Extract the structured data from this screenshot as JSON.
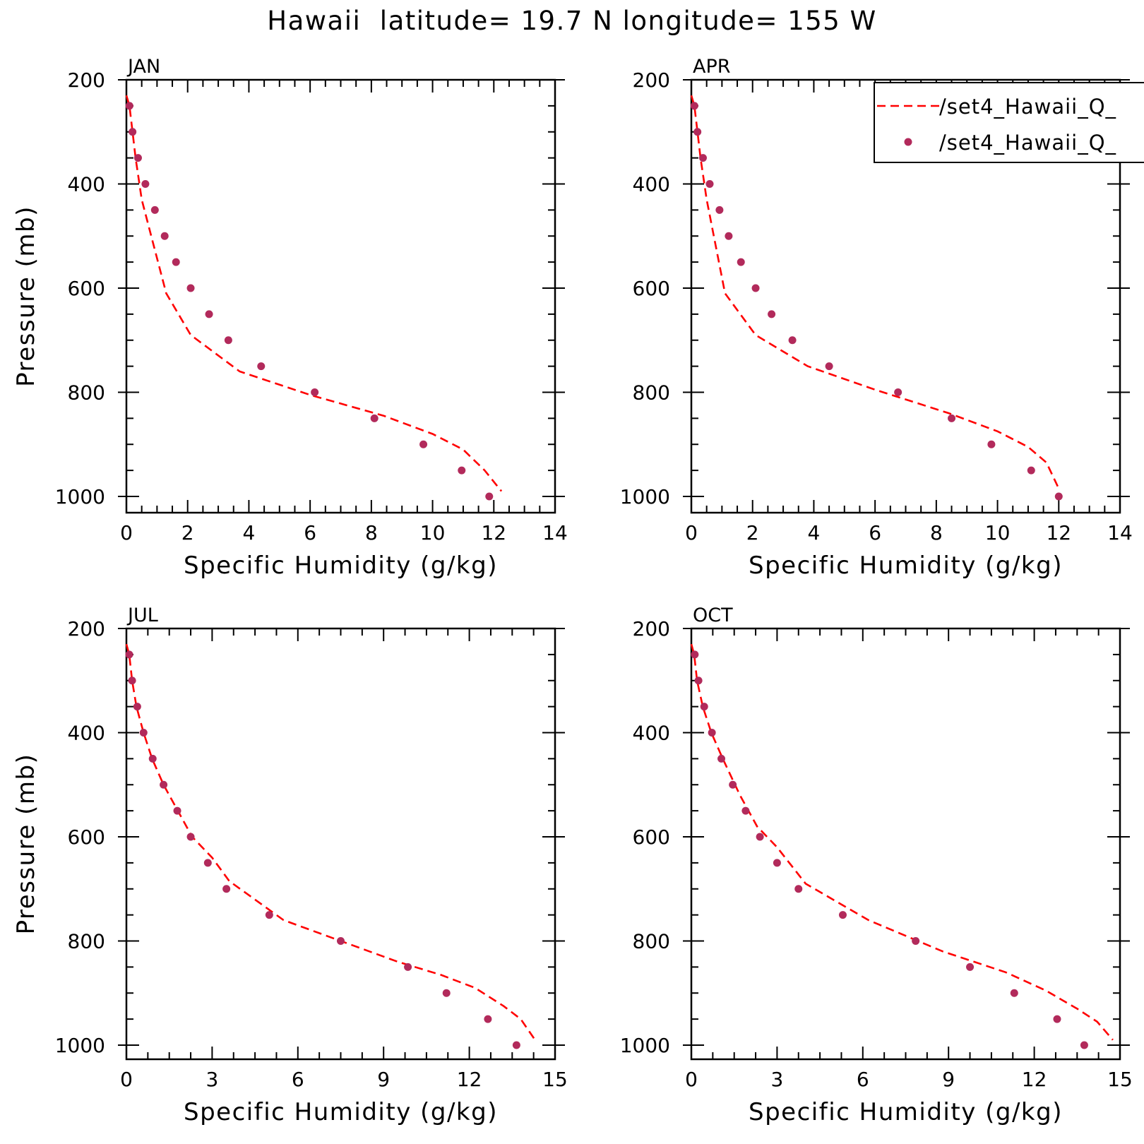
{
  "title": "Hawaii  latitude= 19.7 N longitude= 155 W",
  "colors": {
    "model_line": "#ff0000",
    "obs_points": "#b22a5b",
    "frame": "#000000"
  },
  "legend": {
    "placement": "top-right of APR panel",
    "entries": [
      {
        "label": "/set4_Hawaii_Q_",
        "style": "dashed-line"
      },
      {
        "label": "/set4_Hawaii_Q_",
        "style": "dots"
      }
    ]
  },
  "chart_data": [
    {
      "type": "line",
      "panel": "JAN",
      "xlabel": "Specific Humidity (g/kg)",
      "ylabel": "Pressure (mb)",
      "xlim": [
        0,
        14
      ],
      "ylim": [
        1000,
        200
      ],
      "xticks": [
        0,
        2,
        4,
        6,
        8,
        10,
        12,
        14
      ],
      "yticks": [
        200,
        400,
        600,
        800,
        1000
      ],
      "series": [
        {
          "style": "dashed-line",
          "x": [
            0.0,
            0.1,
            0.2,
            0.3,
            0.5,
            0.9,
            1.3,
            2.1,
            3.7,
            6.0,
            8.4,
            10.0,
            11.0,
            11.7,
            12.25
          ],
          "y": [
            230,
            250,
            300,
            350,
            430,
            520,
            610,
            690,
            760,
            805,
            845,
            880,
            910,
            950,
            990
          ]
        },
        {
          "style": "dots",
          "x": [
            0.1,
            0.2,
            0.38,
            0.62,
            0.93,
            1.25,
            1.62,
            2.1,
            2.7,
            3.33,
            4.4,
            6.15,
            8.1,
            9.7,
            10.95,
            11.85
          ],
          "y": [
            250,
            300,
            350,
            400,
            450,
            500,
            550,
            600,
            650,
            700,
            750,
            800,
            850,
            900,
            950,
            1000
          ]
        }
      ]
    },
    {
      "type": "line",
      "panel": "APR",
      "xlabel": "Specific Humidity (g/kg)",
      "ylabel": "",
      "xlim": [
        0,
        14
      ],
      "ylim": [
        1000,
        200
      ],
      "xticks": [
        0,
        2,
        4,
        6,
        8,
        10,
        12,
        14
      ],
      "yticks": [
        200,
        400,
        600,
        800,
        1000
      ],
      "series": [
        {
          "style": "dashed-line",
          "x": [
            0.0,
            0.1,
            0.2,
            0.3,
            0.5,
            0.8,
            1.1,
            2.1,
            3.8,
            6.0,
            8.4,
            10.0,
            11.0,
            11.6,
            12.0
          ],
          "y": [
            230,
            250,
            300,
            350,
            430,
            520,
            610,
            690,
            750,
            795,
            840,
            875,
            905,
            935,
            985
          ]
        },
        {
          "style": "dots",
          "x": [
            0.1,
            0.2,
            0.38,
            0.6,
            0.92,
            1.22,
            1.62,
            2.1,
            2.62,
            3.3,
            4.5,
            6.75,
            8.5,
            9.8,
            11.1,
            12.0
          ],
          "y": [
            250,
            300,
            350,
            400,
            450,
            500,
            550,
            600,
            650,
            700,
            750,
            800,
            850,
            900,
            950,
            1000
          ]
        }
      ]
    },
    {
      "type": "line",
      "panel": "JUL",
      "xlabel": "Specific Humidity (g/kg)",
      "ylabel": "Pressure (mb)",
      "xlim": [
        0,
        15
      ],
      "ylim": [
        1000,
        200
      ],
      "xticks": [
        0,
        3,
        6,
        9,
        12,
        15
      ],
      "yticks": [
        200,
        400,
        600,
        800,
        1000
      ],
      "series": [
        {
          "style": "dashed-line",
          "x": [
            0.0,
            0.1,
            0.2,
            0.35,
            0.6,
            0.9,
            1.3,
            1.8,
            2.3,
            3.0,
            3.6,
            5.5,
            7.5,
            9.5,
            11.0,
            12.2,
            13.2,
            13.8,
            14.3
          ],
          "y": [
            230,
            250,
            300,
            350,
            400,
            450,
            500,
            550,
            600,
            640,
            685,
            760,
            800,
            840,
            865,
            890,
            925,
            950,
            990
          ]
        },
        {
          "style": "dots",
          "x": [
            0.1,
            0.2,
            0.38,
            0.6,
            0.92,
            1.3,
            1.78,
            2.25,
            2.85,
            3.5,
            5.0,
            7.5,
            9.85,
            11.2,
            12.65,
            13.65
          ],
          "y": [
            250,
            300,
            350,
            400,
            450,
            500,
            550,
            600,
            650,
            700,
            750,
            800,
            850,
            900,
            950,
            1000
          ]
        }
      ]
    },
    {
      "type": "line",
      "panel": "OCT",
      "xlabel": "Specific Humidity (g/kg)",
      "ylabel": "",
      "xlim": [
        0,
        15
      ],
      "ylim": [
        1000,
        200
      ],
      "xticks": [
        0,
        3,
        6,
        9,
        12,
        15
      ],
      "yticks": [
        200,
        400,
        600,
        800,
        1000
      ],
      "series": [
        {
          "style": "dashed-line",
          "x": [
            0.0,
            0.1,
            0.2,
            0.4,
            0.7,
            1.1,
            1.7,
            2.3,
            3.0,
            4.0,
            6.2,
            8.8,
            11.0,
            12.4,
            13.5,
            14.2,
            14.75
          ],
          "y": [
            230,
            250,
            300,
            350,
            400,
            450,
            520,
            580,
            620,
            690,
            760,
            820,
            860,
            895,
            930,
            955,
            990
          ]
        },
        {
          "style": "dots",
          "x": [
            0.12,
            0.25,
            0.45,
            0.72,
            1.05,
            1.45,
            1.9,
            2.4,
            3.0,
            3.75,
            5.3,
            7.85,
            9.75,
            11.3,
            12.8,
            13.75
          ],
          "y": [
            250,
            300,
            350,
            400,
            450,
            500,
            550,
            600,
            650,
            700,
            750,
            800,
            850,
            900,
            950,
            1000
          ]
        }
      ]
    }
  ]
}
